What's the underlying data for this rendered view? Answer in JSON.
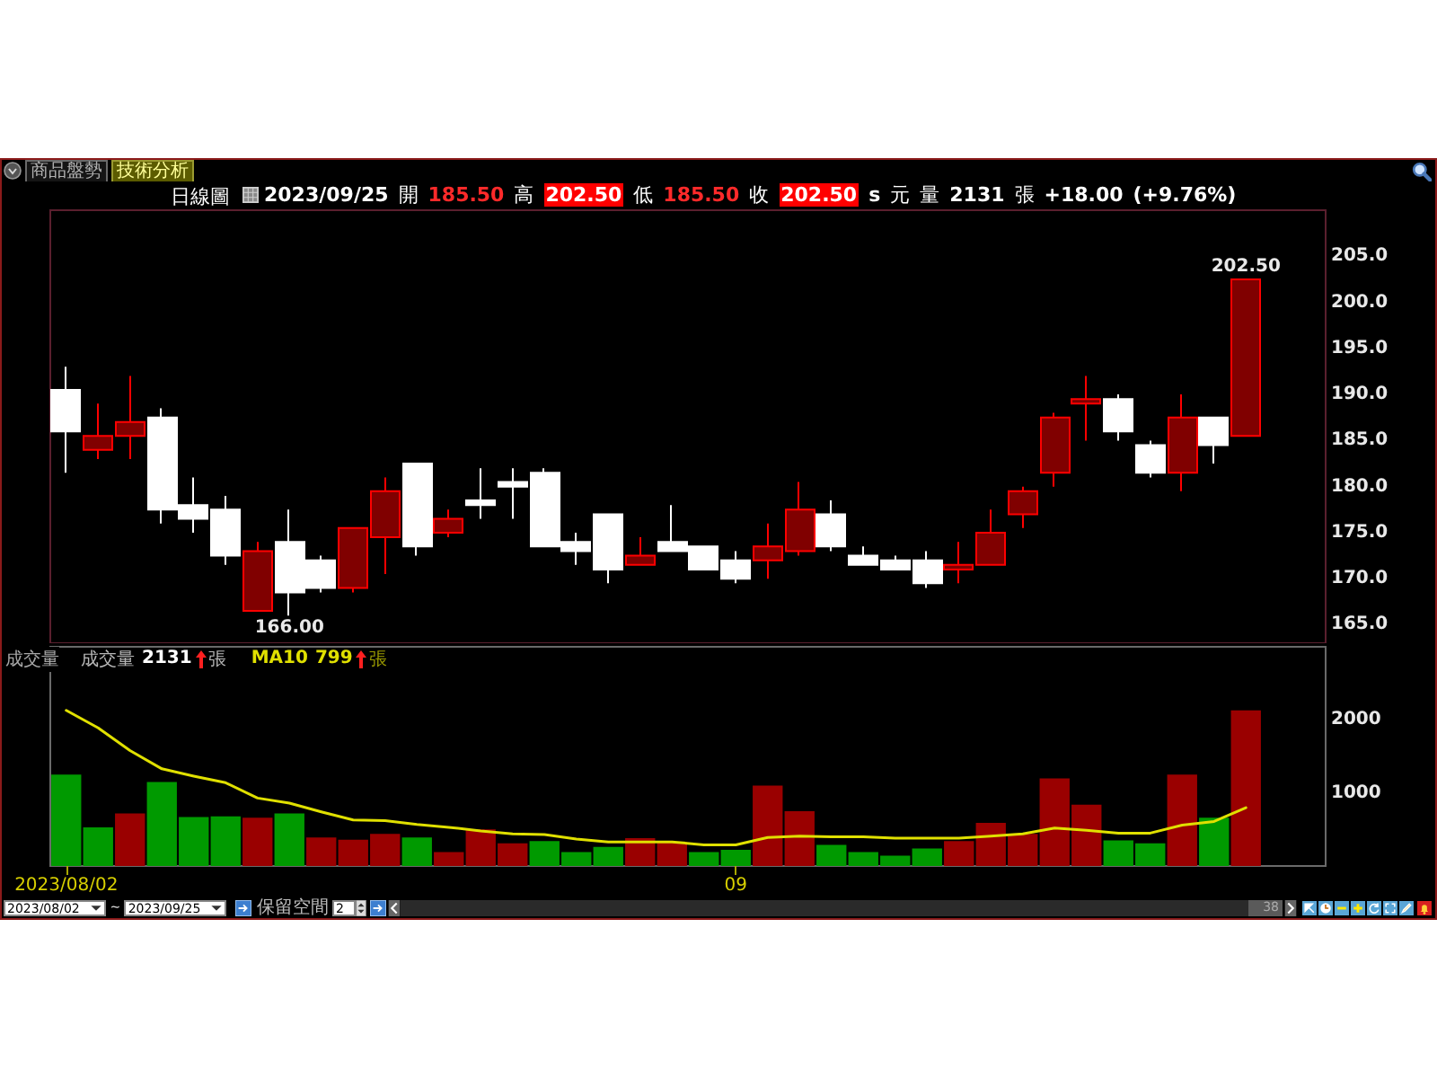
{
  "chart_data": [
    {
      "type": "candlestick",
      "title": "日線圖",
      "subtitle": "2023/09/25 開 185.50 高 202.50 低 185.50 收 202.50 s 元 量 2131 張 +18.00 (+9.76%)",
      "categories": [
        "2023/08/02",
        null,
        null,
        null,
        null,
        null,
        null,
        null,
        null,
        null,
        null,
        null,
        null,
        null,
        null,
        null,
        null,
        null,
        null,
        null,
        null,
        "09",
        null,
        null,
        null,
        null,
        null,
        null,
        null,
        null,
        null,
        null,
        null,
        null,
        null,
        null,
        null,
        null
      ],
      "ohlc": [
        [
          190.5,
          193,
          181.5,
          186
        ],
        [
          184,
          189,
          183,
          185.5
        ],
        [
          185.5,
          192,
          183,
          187
        ],
        [
          187.5,
          188.5,
          176,
          177.5
        ],
        [
          178,
          181,
          175,
          176.5
        ],
        [
          177.5,
          179,
          171.5,
          172.5
        ],
        [
          166.5,
          174,
          166.5,
          173
        ],
        [
          174,
          177.5,
          166,
          168.5
        ],
        [
          172,
          172.5,
          168.5,
          169
        ],
        [
          169,
          175.5,
          168.5,
          175.5
        ],
        [
          174.5,
          181,
          170.5,
          179.5
        ],
        [
          182.5,
          182.5,
          172.5,
          173.5
        ],
        [
          175,
          177.5,
          174.5,
          176.5
        ],
        [
          178.5,
          182,
          176.5,
          178
        ],
        [
          180.5,
          182,
          176.5,
          180
        ],
        [
          181.5,
          182,
          173.5,
          173.5
        ],
        [
          174,
          175,
          171.5,
          173
        ],
        [
          177,
          177,
          169.5,
          171
        ],
        [
          171.5,
          174.5,
          171.5,
          172.5
        ],
        [
          174,
          178,
          173,
          173
        ],
        [
          173.5,
          173.5,
          171,
          171
        ],
        [
          172,
          173,
          169.5,
          170
        ],
        [
          172,
          176,
          170,
          173.5
        ],
        [
          173,
          180.5,
          172.5,
          177.5
        ],
        [
          177,
          178.5,
          173,
          173.5
        ],
        [
          172.5,
          173.5,
          171.5,
          171.5
        ],
        [
          172,
          172.5,
          171,
          171
        ],
        [
          172,
          173,
          169,
          169.5
        ],
        [
          171,
          174,
          169.5,
          171.5
        ],
        [
          171.5,
          177.5,
          171.5,
          175
        ],
        [
          177,
          180,
          175.5,
          179.5
        ],
        [
          181.5,
          188,
          180,
          187.5
        ],
        [
          189,
          192,
          185,
          189.5
        ],
        [
          189.5,
          190,
          185,
          186
        ],
        [
          184.5,
          185,
          181,
          181.5
        ],
        [
          181.5,
          190,
          179.5,
          187.5
        ],
        [
          187.5,
          187.5,
          182.5,
          184.5
        ],
        [
          185.5,
          202.5,
          185.5,
          202.5
        ]
      ],
      "colors": [
        "#ffffff",
        "#800000",
        "#800000",
        "#ffffff",
        "#ffffff",
        "#ffffff",
        "#800000",
        "#ffffff",
        "#ffffff",
        "#800000",
        "#800000",
        "#ffffff",
        "#800000",
        "#ffffff",
        "#ffffff",
        "#ffffff",
        "#ffffff",
        "#ffffff",
        "#800000",
        "#ffffff",
        "#ffffff",
        "#ffffff",
        "#800000",
        "#800000",
        "#ffffff",
        "#ffffff",
        "#ffffff",
        "#ffffff",
        "#800000",
        "#800000",
        "#800000",
        "#800000",
        "#800000",
        "#ffffff",
        "#ffffff",
        "#800000",
        "#ffffff",
        "#800000"
      ],
      "ylim": [
        163,
        210
      ],
      "yticks": [
        {
          "value": 165,
          "label": "165.0"
        },
        {
          "value": 170,
          "label": "170.0"
        },
        {
          "value": 175,
          "label": "175.0"
        },
        {
          "value": 180,
          "label": "180.0"
        },
        {
          "value": 185,
          "label": "185.0"
        },
        {
          "value": 190,
          "label": "190.0"
        },
        {
          "value": 195,
          "label": "195.0"
        },
        {
          "value": 200,
          "label": "200.0"
        },
        {
          "value": 205,
          "label": "205.0"
        }
      ],
      "tick_labels": "y",
      "annotations": [
        "商品盤勢",
        "技術分析",
        {
          "text": "202.50",
          "y": 202.5
        },
        {
          "text": "166.00",
          "y": 166
        }
      ]
    },
    {
      "type": "bar",
      "title": "成交量",
      "categories": [
        "2023/08/02",
        null,
        null,
        null,
        null,
        null,
        null,
        null,
        null,
        null,
        null,
        null,
        null,
        null,
        null,
        null,
        null,
        null,
        null,
        null,
        null,
        "09",
        null,
        null,
        null,
        null,
        null,
        null,
        null,
        null,
        null,
        null,
        null,
        null,
        null,
        null,
        null,
        null
      ],
      "series": [
        {
          "type": "bar",
          "colors": [
            "#009a00",
            "#009a00",
            "#9a0000",
            "#009a00",
            "#009a00",
            "#009a00",
            "#9a0000",
            "#009a00",
            "#9a0000",
            "#9a0000",
            "#9a0000",
            "#009a00",
            "#9a0000",
            "#9a0000",
            "#9a0000",
            "#009a00",
            "#009a00",
            "#009a00",
            "#9a0000",
            "#9a0000",
            "#009a00",
            "#009a00",
            "#9a0000",
            "#9a0000",
            "#009a00",
            "#009a00",
            "#009a00",
            "#009a00",
            "#9a0000",
            "#9a0000",
            "#9a0000",
            "#9a0000",
            "#9a0000",
            "#009a00",
            "#009a00",
            "#9a0000",
            "#009a00",
            "#9a0000"
          ],
          "values": [
            1250,
            530,
            720,
            1150,
            670,
            680,
            660,
            720,
            390,
            360,
            440,
            390,
            190,
            500,
            310,
            340,
            190,
            260,
            380,
            330,
            190,
            220,
            1100,
            750,
            290,
            190,
            140,
            240,
            340,
            590,
            440,
            1200,
            840,
            350,
            310,
            1250,
            660,
            2131
          ]
        },
        {
          "name": "MA10",
          "type": "line",
          "color": "#e0e000",
          "values": [
            2130,
            1890,
            1580,
            1330,
            1230,
            1140,
            930,
            860,
            740,
            630,
            620,
            570,
            530,
            480,
            440,
            430,
            370,
            330,
            330,
            330,
            290,
            290,
            390,
            410,
            400,
            400,
            380,
            380,
            380,
            410,
            440,
            520,
            490,
            450,
            450,
            560,
            610,
            799
          ]
        }
      ],
      "ylim": [
        0,
        3000
      ],
      "yticks": [
        1000,
        2000
      ],
      "legend": "top left",
      "annotations": [
        "成交量",
        "2131",
        "張",
        "799",
        "張",
        "2023/08/02 ~ 2023/09/25",
        "保留空間",
        "2",
        "38"
      ]
    }
  ]
}
